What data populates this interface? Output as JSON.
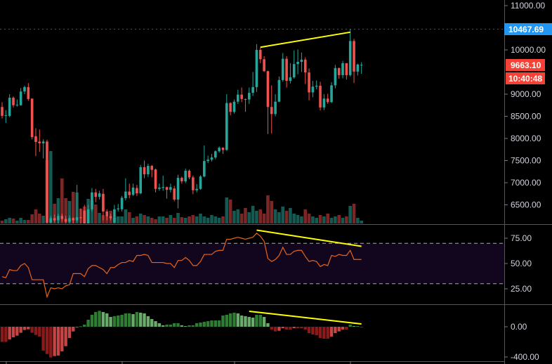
{
  "chart_data": {
    "type": "candlestick",
    "colors": {
      "up": "#26a69a",
      "down": "#ef5350",
      "volume_up": "#145a52",
      "volume_down": "#7b2727",
      "rsi_line": "#e8641a",
      "rsi_band": "#12061f",
      "macd_up_rising": "#2e7d32",
      "macd_up_falling": "#6aaa6a",
      "macd_down_falling": "#8b1a1a",
      "macd_down_rising": "#c54444",
      "trendline": "#ffff00",
      "last_price": "#f44336",
      "high_marker": "#2196f3"
    },
    "price_axis": {
      "ticks": [
        "11000.00",
        "10000.00",
        "9000.00",
        "8500.00",
        "8000.00",
        "7500.00",
        "7000.00",
        "6500.00"
      ],
      "tick_values": [
        11000,
        10000,
        9000,
        8500,
        8000,
        7500,
        7000,
        6500
      ]
    },
    "high_label": {
      "value": 10467.69,
      "text": "10467.69"
    },
    "last_label": {
      "value": 9663.1,
      "text": "9663.10",
      "countdown": "10:40:48"
    },
    "ohlc": [
      [
        8710,
        8820,
        8450,
        8510
      ],
      [
        8520,
        8640,
        8350,
        8525
      ],
      [
        8510,
        9000,
        8480,
        8920
      ],
      [
        8920,
        8950,
        8700,
        8750
      ],
      [
        8760,
        8880,
        8720,
        8760
      ],
      [
        8750,
        9140,
        8740,
        9060
      ],
      [
        9060,
        9190,
        9000,
        9160
      ],
      [
        9160,
        9250,
        8850,
        8890
      ],
      [
        8900,
        8900,
        7980,
        8030
      ],
      [
        8050,
        8230,
        7600,
        7920
      ],
      [
        7930,
        8200,
        7700,
        7890
      ],
      [
        7890,
        7980,
        7550,
        7930
      ],
      [
        7930,
        7970,
        6050,
        6100
      ],
      [
        6100,
        6250,
        6000,
        6200
      ],
      [
        6200,
        6280,
        6100,
        6150
      ],
      [
        6150,
        6300,
        6080,
        6250
      ],
      [
        6250,
        6300,
        6120,
        6180
      ],
      [
        6180,
        6250,
        6050,
        6120
      ],
      [
        6120,
        6260,
        6060,
        6200
      ],
      [
        6200,
        6220,
        6050,
        6150
      ],
      [
        6150,
        6950,
        6100,
        6220
      ],
      [
        6220,
        6420,
        6080,
        6200
      ],
      [
        6370,
        6500,
        6050,
        6080
      ],
      [
        6080,
        6500,
        6050,
        6400
      ],
      [
        6400,
        6880,
        6350,
        6780
      ],
      [
        6780,
        6860,
        6560,
        6680
      ],
      [
        6680,
        6820,
        6620,
        6760
      ],
      [
        6750,
        6860,
        6150,
        6350
      ],
      [
        6350,
        6400,
        6150,
        6240
      ],
      [
        6240,
        6300,
        6150,
        6200
      ],
      [
        6100,
        6500,
        6050,
        6400
      ],
      [
        6400,
        6520,
        6350,
        6420
      ],
      [
        6400,
        6700,
        6350,
        6660
      ],
      [
        6650,
        7100,
        6600,
        6800
      ],
      [
        6800,
        6980,
        6650,
        6720
      ],
      [
        6730,
        6980,
        6700,
        6890
      ],
      [
        6880,
        6950,
        6700,
        6760
      ],
      [
        6760,
        7400,
        6740,
        7350
      ],
      [
        7350,
        7500,
        7100,
        7190
      ],
      [
        7190,
        7430,
        7130,
        7380
      ],
      [
        7380,
        7400,
        7120,
        7290
      ],
      [
        7300,
        7320,
        6780,
        6860
      ],
      [
        6860,
        6980,
        6820,
        6890
      ],
      [
        6880,
        7160,
        6820,
        6900
      ],
      [
        6900,
        6910,
        6640,
        6840
      ],
      [
        6840,
        6980,
        6780,
        6900
      ],
      [
        6870,
        6930,
        6580,
        6620
      ],
      [
        6620,
        7180,
        6420,
        7110
      ],
      [
        7110,
        7140,
        6980,
        7030
      ],
      [
        7030,
        7320,
        6990,
        7270
      ],
      [
        7270,
        7300,
        7080,
        7120
      ],
      [
        7120,
        7160,
        6740,
        6830
      ],
      [
        6830,
        6970,
        6780,
        6860
      ],
      [
        6860,
        7170,
        6840,
        7140
      ],
      [
        7140,
        7840,
        7120,
        7490
      ],
      [
        7490,
        7610,
        7440,
        7520
      ],
      [
        7520,
        7650,
        7480,
        7570
      ],
      [
        7570,
        7730,
        7530,
        7710
      ],
      [
        7710,
        7820,
        7680,
        7790
      ],
      [
        7790,
        7800,
        7650,
        7740
      ],
      [
        7740,
        9000,
        7720,
        8800
      ],
      [
        8800,
        8820,
        8520,
        8600
      ],
      [
        8600,
        8880,
        8560,
        8830
      ],
      [
        8830,
        9100,
        8780,
        8990
      ],
      [
        8990,
        9150,
        8820,
        8890
      ],
      [
        8890,
        8900,
        8600,
        8880
      ],
      [
        8880,
        9150,
        8780,
        9030
      ],
      [
        9030,
        9500,
        8960,
        9160
      ],
      [
        9160,
        10130,
        9050,
        10000
      ],
      [
        10000,
        10050,
        9700,
        9790
      ],
      [
        9790,
        9860,
        9500,
        9520
      ],
      [
        9520,
        9530,
        8100,
        8710
      ],
      [
        8710,
        9200,
        8110,
        8550
      ],
      [
        8550,
        9000,
        8500,
        8830
      ],
      [
        8830,
        9400,
        8820,
        9320
      ],
      [
        9320,
        9930,
        9280,
        9800
      ],
      [
        9800,
        9860,
        9150,
        9300
      ],
      [
        9300,
        9700,
        9240,
        9380
      ],
      [
        9380,
        9990,
        9350,
        9680
      ],
      [
        9680,
        10010,
        9450,
        9730
      ],
      [
        9730,
        9940,
        9500,
        9780
      ],
      [
        9780,
        9830,
        9230,
        9490
      ],
      [
        9490,
        9580,
        8860,
        9040
      ],
      [
        9040,
        9300,
        8930,
        9170
      ],
      [
        9170,
        9310,
        9110,
        9190
      ],
      [
        9190,
        9280,
        8630,
        8700
      ],
      [
        8700,
        9000,
        8640,
        8900
      ],
      [
        8900,
        9010,
        8780,
        8820
      ],
      [
        8820,
        9270,
        8800,
        9200
      ],
      [
        9200,
        9660,
        9130,
        9590
      ],
      [
        9590,
        9600,
        9350,
        9430
      ],
      [
        9430,
        9750,
        9360,
        9700
      ],
      [
        9700,
        9700,
        9330,
        9430
      ],
      [
        9430,
        10467.69,
        9400,
        10200
      ],
      [
        10200,
        10250,
        9250,
        9510
      ],
      [
        9510,
        9690,
        9420,
        9670
      ],
      [
        9663,
        9720,
        9460,
        9663.1
      ]
    ],
    "volume": [
      4,
      6,
      8,
      7,
      4,
      8,
      5,
      5,
      13,
      20,
      14,
      11,
      90,
      103,
      28,
      36,
      64,
      36,
      32,
      45,
      44,
      21,
      24,
      35,
      33,
      27,
      15,
      12,
      10,
      18,
      8,
      10,
      10,
      20,
      16,
      8,
      10,
      14,
      12,
      10,
      8,
      6,
      10,
      10,
      8,
      12,
      8,
      15,
      9,
      8,
      10,
      12,
      10,
      14,
      10,
      8,
      12,
      10,
      8,
      10,
      37,
      34,
      18,
      20,
      14,
      22,
      16,
      25,
      18,
      20,
      14,
      40,
      32,
      20,
      16,
      24,
      18,
      22,
      14,
      12,
      10,
      20,
      14,
      10,
      8,
      12,
      10,
      14,
      8,
      10,
      12,
      8,
      10,
      25,
      28,
      8,
      4
    ],
    "rsi": {
      "ticks": [
        "75.00",
        "50.00",
        "25.00"
      ],
      "tick_values": [
        75,
        50,
        25
      ],
      "levels": [
        70,
        30
      ],
      "values": [
        37,
        36,
        44,
        43,
        43,
        48,
        50,
        46,
        34,
        34,
        34,
        34,
        17,
        26,
        25,
        26,
        25,
        28,
        29,
        40,
        40,
        40,
        37,
        45,
        48,
        48,
        46,
        44,
        40,
        46,
        46,
        49,
        51,
        51,
        53,
        52,
        58,
        58,
        59,
        58,
        51,
        51,
        51,
        51,
        50,
        50,
        46,
        53,
        53,
        56,
        53,
        48,
        48,
        52,
        59,
        59,
        59,
        62,
        63,
        63,
        74,
        74,
        75,
        76,
        75,
        74,
        75,
        76,
        80,
        77,
        72,
        55,
        52,
        54,
        58,
        66,
        59,
        59,
        62,
        63,
        63,
        57,
        52,
        53,
        52,
        47,
        49,
        48,
        58,
        57,
        59,
        58,
        58,
        63,
        54,
        54,
        54
      ]
    },
    "macd_histogram": {
      "ticks": [
        "0.00",
        "-400.00"
      ],
      "tick_values": [
        0,
        -400
      ],
      "values": [
        -200,
        -200,
        -167,
        -140,
        -118,
        -80,
        -43,
        -34,
        -80,
        -108,
        -130,
        -316,
        -360,
        -406,
        -388,
        -381,
        -325,
        -257,
        -149,
        -62,
        -10,
        6,
        28,
        93,
        158,
        195,
        211,
        195,
        177,
        130,
        140,
        149,
        158,
        177,
        177,
        167,
        195,
        186,
        177,
        140,
        102,
        74,
        47,
        19,
        28,
        28,
        47,
        47,
        19,
        9,
        19,
        19,
        47,
        56,
        65,
        74,
        84,
        84,
        84,
        149,
        158,
        177,
        186,
        177,
        149,
        140,
        130,
        121,
        158,
        158,
        130,
        47,
        -37,
        -62,
        -53,
        -19,
        -37,
        -37,
        -19,
        -19,
        -19,
        -37,
        -84,
        -102,
        -112,
        -149,
        -158,
        -158,
        -130,
        -84,
        -62,
        -37,
        -37,
        28,
        9,
        9,
        -5
      ]
    },
    "trendlines": [
      {
        "pane": "price",
        "from": [
          69,
          10060
        ],
        "to": [
          93,
          10400
        ]
      },
      {
        "pane": "rsi",
        "from": [
          68,
          83
        ],
        "to": [
          96,
          67
        ]
      },
      {
        "pane": "macd",
        "from": [
          66,
          205
        ],
        "to": [
          96,
          37
        ]
      }
    ]
  }
}
